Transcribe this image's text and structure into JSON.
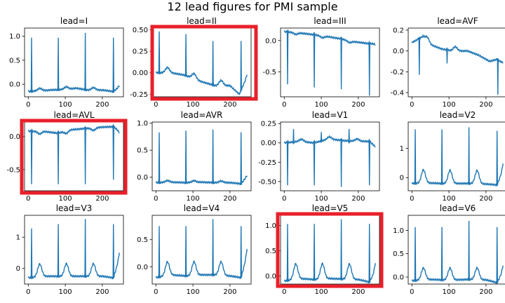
{
  "figure_title": "12 lead figures for PMI sample",
  "colors": {
    "line": "#1f77b4",
    "highlight": "#e8202a",
    "axis": "#000000"
  },
  "chart_data": [
    {
      "type": "line",
      "title": "lead=I",
      "xlim": [
        -10,
        257
      ],
      "ylim": [
        -0.26,
        1.17
      ],
      "xticks": [
        0,
        100,
        200
      ],
      "xtick_labels": [
        "0",
        "100",
        "200"
      ],
      "yticks": [
        0.0,
        0.5,
        1.0
      ],
      "ytick_labels": [
        "0.0",
        "0.5",
        "1.0"
      ],
      "baseline": [
        [
          0,
          -0.15
        ],
        [
          40,
          -0.13
        ],
        [
          60,
          -0.12
        ],
        [
          110,
          -0.1
        ],
        [
          130,
          -0.08
        ],
        [
          160,
          -0.12
        ],
        [
          200,
          -0.12
        ],
        [
          230,
          -0.15
        ],
        [
          246,
          -0.05
        ]
      ],
      "peaks": [
        {
          "x": 9,
          "h": 0.97
        },
        {
          "x": 81,
          "h": 0.97
        },
        {
          "x": 154,
          "h": 1.07
        },
        {
          "x": 230,
          "h": 0.97
        }
      ],
      "dips": [],
      "bumps_y": 0.05,
      "highlighted": false
    },
    {
      "type": "line",
      "title": "lead=II",
      "xlim": [
        -10,
        257
      ],
      "ylim": [
        -0.28,
        0.52
      ],
      "xticks": [
        0,
        100,
        200
      ],
      "xtick_labels": [
        "0",
        "100",
        "200"
      ],
      "yticks": [
        -0.25,
        0.0,
        0.25,
        0.5
      ],
      "ytick_labels": [
        "-0.25",
        "0.00",
        "0.25",
        "0.50"
      ],
      "baseline": [
        [
          0,
          0.0
        ],
        [
          40,
          0.0
        ],
        [
          80,
          -0.03
        ],
        [
          120,
          -0.1
        ],
        [
          160,
          -0.15
        ],
        [
          200,
          -0.15
        ],
        [
          225,
          -0.25
        ],
        [
          246,
          -0.05
        ]
      ],
      "peaks": [
        {
          "x": 9,
          "h": 0.48
        },
        {
          "x": 81,
          "h": 0.45
        },
        {
          "x": 154,
          "h": 0.37
        },
        {
          "x": 230,
          "h": 0.37
        }
      ],
      "dips": [],
      "bumps_y": 0.06,
      "highlighted": true
    },
    {
      "type": "line",
      "title": "lead=III",
      "xlim": [
        -10,
        257
      ],
      "ylim": [
        -0.9,
        0.2
      ],
      "xticks": [
        0,
        100,
        200
      ],
      "xtick_labels": [
        "0",
        "100",
        "200"
      ],
      "yticks": [
        -0.5,
        0.0
      ],
      "ytick_labels": [
        "-0.5",
        "0.0"
      ],
      "baseline": [
        [
          0,
          0.14
        ],
        [
          30,
          0.13
        ],
        [
          70,
          0.1
        ],
        [
          110,
          0.07
        ],
        [
          150,
          0.03
        ],
        [
          190,
          -0.02
        ],
        [
          230,
          -0.05
        ],
        [
          246,
          -0.05
        ]
      ],
      "peaks": [],
      "dips": [
        {
          "x": 9,
          "d": -0.7
        },
        {
          "x": 81,
          "d": -0.75
        },
        {
          "x": 154,
          "d": -0.78
        },
        {
          "x": 230,
          "d": -0.88
        }
      ],
      "bumps_y": -0.03,
      "highlighted": false
    },
    {
      "type": "line",
      "title": "lead=AVF",
      "xlim": [
        -10,
        257
      ],
      "ylim": [
        -0.44,
        0.22
      ],
      "xticks": [
        0,
        100,
        200
      ],
      "xtick_labels": [
        "0",
        "100",
        "200"
      ],
      "yticks": [
        -0.4,
        -0.2,
        0.0,
        0.2
      ],
      "ytick_labels": [
        "-0.4",
        "-0.2",
        "0.0",
        "0.2"
      ],
      "baseline": [
        [
          0,
          0.08
        ],
        [
          30,
          0.14
        ],
        [
          50,
          0.06
        ],
        [
          80,
          0.02
        ],
        [
          110,
          0.0
        ],
        [
          150,
          0.0
        ],
        [
          180,
          -0.04
        ],
        [
          210,
          -0.1
        ],
        [
          230,
          -0.08
        ],
        [
          246,
          -0.12
        ]
      ],
      "peaks": [],
      "dips": [
        {
          "x": 20,
          "d": -0.23
        },
        {
          "x": 95,
          "d": -0.12
        },
        {
          "x": 232,
          "d": -0.42
        }
      ],
      "bumps_y": 0.04,
      "highlighted": false
    },
    {
      "type": "line",
      "title": "lead=AVL",
      "xlim": [
        -10,
        257
      ],
      "ylim": [
        -0.82,
        0.22
      ],
      "xticks": [
        0,
        100,
        200
      ],
      "xtick_labels": [
        "0",
        "100",
        "200"
      ],
      "yticks": [
        -0.5,
        0.0
      ],
      "ytick_labels": [
        "-0.5",
        "0.0"
      ],
      "baseline": [
        [
          0,
          0.08
        ],
        [
          40,
          0.08
        ],
        [
          80,
          0.05
        ],
        [
          110,
          0.1
        ],
        [
          150,
          0.12
        ],
        [
          190,
          0.14
        ],
        [
          230,
          0.15
        ],
        [
          246,
          0.08
        ]
      ],
      "peaks": [],
      "dips": [
        {
          "x": 9,
          "d": -0.72
        },
        {
          "x": 81,
          "d": -0.72
        },
        {
          "x": 154,
          "d": -0.72
        },
        {
          "x": 230,
          "d": -0.65
        }
      ],
      "bumps_y": -0.04,
      "highlighted": true
    },
    {
      "type": "line",
      "title": "lead=AVR",
      "xlim": [
        -10,
        257
      ],
      "ylim": [
        -0.25,
        1.02
      ],
      "xticks": [
        0,
        100,
        200
      ],
      "xtick_labels": [
        "0",
        "100",
        "200"
      ],
      "yticks": [
        0.0,
        0.5,
        1.0
      ],
      "ytick_labels": [
        "0.0",
        "0.5",
        "1.0"
      ],
      "baseline": [
        [
          0,
          -0.1
        ],
        [
          40,
          -0.09
        ],
        [
          80,
          -0.1
        ],
        [
          120,
          -0.09
        ],
        [
          160,
          -0.1
        ],
        [
          200,
          -0.1
        ],
        [
          230,
          -0.12
        ],
        [
          246,
          0.02
        ]
      ],
      "peaks": [
        {
          "x": 9,
          "h": 0.83
        },
        {
          "x": 81,
          "h": 0.86
        },
        {
          "x": 154,
          "h": 0.88
        },
        {
          "x": 230,
          "h": 0.83
        }
      ],
      "dips": [],
      "bumps_y": 0.03,
      "highlighted": false
    },
    {
      "type": "line",
      "title": "lead=V1",
      "xlim": [
        -10,
        257
      ],
      "ylim": [
        -0.62,
        0.27
      ],
      "xticks": [
        0,
        100,
        200
      ],
      "xtick_labels": [
        "0",
        "100",
        "200"
      ],
      "yticks": [
        -0.5,
        -0.25,
        0.0,
        0.25
      ],
      "ytick_labels": [
        "-0.50",
        "-0.25",
        "0.00",
        "0.25"
      ],
      "baseline": [
        [
          0,
          0.0
        ],
        [
          40,
          0.02
        ],
        [
          80,
          0.0
        ],
        [
          120,
          0.05
        ],
        [
          160,
          0.03
        ],
        [
          200,
          0.02
        ],
        [
          230,
          0.02
        ],
        [
          246,
          -0.05
        ]
      ],
      "peaks": [
        {
          "x": 25,
          "h": 0.18
        },
        {
          "x": 100,
          "h": 0.14
        },
        {
          "x": 175,
          "h": 0.18
        }
      ],
      "dips": [
        {
          "x": 9,
          "d": -0.55
        },
        {
          "x": 81,
          "d": -0.55
        },
        {
          "x": 154,
          "d": -0.57
        },
        {
          "x": 230,
          "d": -0.55
        }
      ],
      "bumps_y": 0.03,
      "highlighted": false
    },
    {
      "type": "line",
      "title": "lead=V2",
      "xlim": [
        -10,
        257
      ],
      "ylim": [
        -0.45,
        1.9
      ],
      "xticks": [
        0,
        100,
        200
      ],
      "xtick_labels": [
        "0",
        "100",
        "200"
      ],
      "yticks": [
        0,
        1
      ],
      "ytick_labels": [
        "0",
        "1"
      ],
      "baseline": [
        [
          0,
          -0.2
        ],
        [
          40,
          -0.18
        ],
        [
          80,
          -0.2
        ],
        [
          120,
          -0.2
        ],
        [
          160,
          -0.2
        ],
        [
          200,
          -0.22
        ],
        [
          230,
          -0.25
        ],
        [
          246,
          0.25
        ]
      ],
      "peaks": [
        {
          "x": 9,
          "h": 1.65
        },
        {
          "x": 81,
          "h": 1.65
        },
        {
          "x": 154,
          "h": 1.72
        },
        {
          "x": 230,
          "h": 1.6
        }
      ],
      "dips": [],
      "bumps_y": 0.45,
      "highlighted": false
    },
    {
      "type": "line",
      "title": "lead=V3",
      "xlim": [
        -10,
        257
      ],
      "ylim": [
        -0.5,
        1.7
      ],
      "xticks": [
        0,
        100,
        200
      ],
      "xtick_labels": [
        "0",
        "100",
        "200"
      ],
      "yticks": [
        0,
        1
      ],
      "ytick_labels": [
        "0",
        "1"
      ],
      "baseline": [
        [
          0,
          -0.3
        ],
        [
          40,
          -0.25
        ],
        [
          80,
          -0.25
        ],
        [
          120,
          -0.25
        ],
        [
          160,
          -0.25
        ],
        [
          200,
          -0.25
        ],
        [
          230,
          -0.3
        ],
        [
          246,
          0.3
        ]
      ],
      "peaks": [
        {
          "x": 9,
          "h": 1.28
        },
        {
          "x": 81,
          "h": 1.42
        },
        {
          "x": 154,
          "h": 1.58
        },
        {
          "x": 230,
          "h": 1.42
        }
      ],
      "dips": [],
      "bumps_y": 0.4,
      "highlighted": false
    },
    {
      "type": "line",
      "title": "lead=V4",
      "xlim": [
        -10,
        257
      ],
      "ylim": [
        -0.32,
        0.95
      ],
      "xticks": [
        0,
        100,
        200
      ],
      "xtick_labels": [
        "0",
        "100",
        "200"
      ],
      "yticks": [
        0.0,
        0.5
      ],
      "ytick_labels": [
        "0.0",
        "0.5"
      ],
      "baseline": [
        [
          0,
          -0.2
        ],
        [
          40,
          -0.15
        ],
        [
          80,
          -0.17
        ],
        [
          120,
          -0.15
        ],
        [
          160,
          -0.15
        ],
        [
          200,
          -0.17
        ],
        [
          230,
          -0.2
        ],
        [
          246,
          0.2
        ]
      ],
      "peaks": [
        {
          "x": 9,
          "h": 0.75
        },
        {
          "x": 81,
          "h": 0.75
        },
        {
          "x": 154,
          "h": 0.88
        },
        {
          "x": 230,
          "h": 0.75
        }
      ],
      "dips": [],
      "bumps_y": 0.25,
      "highlighted": false
    },
    {
      "type": "line",
      "title": "lead=V5",
      "xlim": [
        -10,
        257
      ],
      "ylim": [
        -0.16,
        1.2
      ],
      "xticks": [
        0,
        100,
        200
      ],
      "xtick_labels": [
        "0",
        "100",
        "200"
      ],
      "yticks": [
        0.0,
        0.5,
        1.0
      ],
      "ytick_labels": [
        "0.0",
        "0.5",
        "1.0"
      ],
      "baseline": [
        [
          0,
          -0.1
        ],
        [
          40,
          -0.05
        ],
        [
          80,
          -0.07
        ],
        [
          120,
          -0.05
        ],
        [
          160,
          -0.06
        ],
        [
          200,
          -0.07
        ],
        [
          230,
          -0.12
        ],
        [
          246,
          0.1
        ]
      ],
      "peaks": [
        {
          "x": 9,
          "h": 1.03
        },
        {
          "x": 81,
          "h": 1.03
        },
        {
          "x": 154,
          "h": 1.12
        },
        {
          "x": 230,
          "h": 1.03
        }
      ],
      "dips": [],
      "bumps_y": 0.3,
      "highlighted": true
    },
    {
      "type": "line",
      "title": "lead=V6",
      "xlim": [
        -10,
        257
      ],
      "ylim": [
        -0.15,
        1.32
      ],
      "xticks": [
        0,
        100,
        200
      ],
      "xtick_labels": [
        "0",
        "100",
        "200"
      ],
      "yticks": [
        0.0,
        0.5,
        1.0
      ],
      "ytick_labels": [
        "0.0",
        "0.5",
        "1.0"
      ],
      "baseline": [
        [
          0,
          -0.08
        ],
        [
          40,
          -0.05
        ],
        [
          80,
          -0.06
        ],
        [
          120,
          -0.06
        ],
        [
          160,
          -0.05
        ],
        [
          200,
          -0.06
        ],
        [
          230,
          -0.12
        ],
        [
          246,
          0.12
        ]
      ],
      "peaks": [
        {
          "x": 9,
          "h": 1.07
        },
        {
          "x": 81,
          "h": 1.07
        },
        {
          "x": 154,
          "h": 1.2
        },
        {
          "x": 230,
          "h": 1.07
        }
      ],
      "dips": [],
      "bumps_y": 0.25,
      "highlighted": false
    }
  ]
}
